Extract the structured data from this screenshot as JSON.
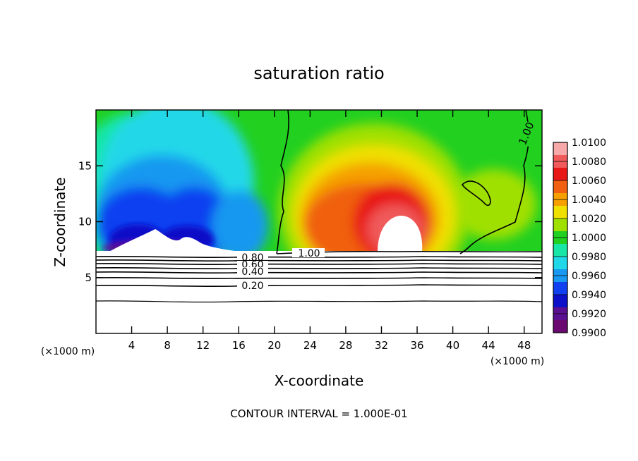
{
  "chart_data": {
    "type": "heatmap",
    "title": "saturation ratio",
    "xlabel": "X-coordinate",
    "ylabel": "Z-coordinate",
    "x_unit": "(×1000 m)",
    "xlim": [
      0,
      50
    ],
    "ylim": [
      0,
      20
    ],
    "x_ticks": [
      4,
      8,
      12,
      16,
      20,
      24,
      28,
      32,
      36,
      40,
      44,
      48
    ],
    "y_ticks": [
      5,
      10,
      15
    ],
    "colorbar": {
      "levels": [
        "1.0100",
        "1.0080",
        "1.0060",
        "1.0040",
        "1.0020",
        "1.0000",
        "0.9980",
        "0.9960",
        "0.9940",
        "0.9920",
        "0.9900"
      ],
      "colors": [
        "#f7a8a8",
        "#f05a5a",
        "#e81818",
        "#f06010",
        "#f5a000",
        "#f0e000",
        "#a0e000",
        "#22d020",
        "#18e6a6",
        "#20d8e8",
        "#1898f0",
        "#1040f0",
        "#0c10c8",
        "#5a1090",
        "#6a0a70"
      ]
    },
    "contour_labels": [
      "1.00",
      "1.00",
      "0.80",
      "0.60",
      "0.40",
      "0.20"
    ],
    "footer": "CONTOUR INTERVAL = 1.000E-01"
  }
}
